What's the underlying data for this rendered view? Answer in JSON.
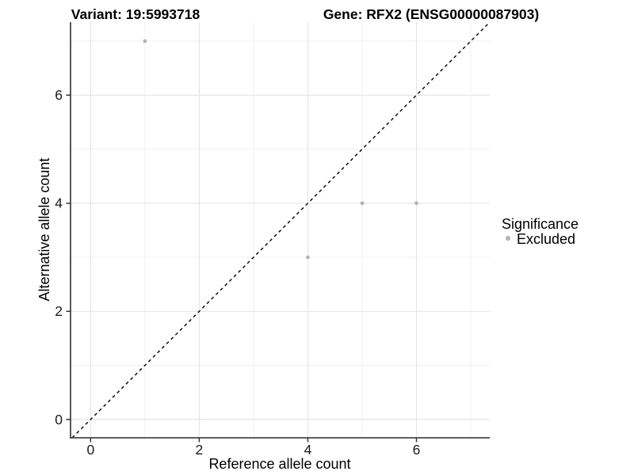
{
  "figure": {
    "background": "#ffffff"
  },
  "chart_data": {
    "type": "scatter",
    "titles": {
      "left": "Variant: 19:5993718",
      "right": "Gene: RFX2 (ENSG00000087903)"
    },
    "xlabel": "Reference allele count",
    "ylabel": "Alternative allele count",
    "x_ticks": [
      0,
      2,
      4,
      6
    ],
    "y_ticks": [
      0,
      2,
      4,
      6
    ],
    "xlim": [
      -0.37,
      7.35
    ],
    "ylim": [
      -0.34,
      7.35
    ],
    "grid": "on",
    "grid_major_values": [
      0,
      2,
      4,
      6
    ],
    "grid_minor_values": [
      1,
      3,
      5,
      7
    ],
    "legend_position": "right",
    "series": [
      {
        "name": "Excluded",
        "color": "#b5b5b5",
        "points": [
          [
            1,
            7
          ],
          [
            4,
            3
          ],
          [
            5,
            4
          ],
          [
            6,
            4
          ]
        ]
      }
    ],
    "reference_line": {
      "kind": "y = x",
      "style": "dashed",
      "color": "#000000"
    },
    "legend": {
      "title": "Significance",
      "entries": [
        {
          "label": "Excluded",
          "color": "#b5b5b5",
          "marker": "circle"
        }
      ]
    }
  },
  "colors": {
    "background": "#ffffff",
    "grid_major": "#e4e4e4",
    "grid_minor": "#efefef",
    "axis_line": "#474747",
    "tick_mark": "#333333",
    "point": "#b5b5b5",
    "reference_line": "#000000"
  }
}
